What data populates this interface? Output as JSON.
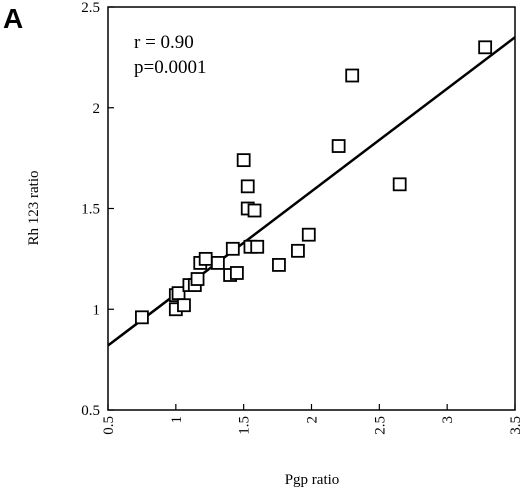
{
  "panel_label": "A",
  "chart_data": {
    "type": "scatter",
    "title": "",
    "xlabel": "Pgp ratio",
    "ylabel": "Rh 123 ratio",
    "xlim": [
      0.5,
      3.5
    ],
    "ylim": [
      0.5,
      2.5
    ],
    "x_ticks": [
      "0.5",
      "1",
      "1.5",
      "2",
      "2.5",
      "3",
      "3.5"
    ],
    "y_ticks": [
      "0.5",
      "1",
      "1.5",
      "2",
      "2.5"
    ],
    "grid": false,
    "marker": "open-square",
    "annotations": [
      "r = 0.90",
      "p=0.0001"
    ],
    "regression_line": {
      "x": [
        0.5,
        3.5
      ],
      "y": [
        0.82,
        2.35
      ]
    },
    "points": [
      {
        "x": 0.75,
        "y": 0.96
      },
      {
        "x": 1.0,
        "y": 1.0
      },
      {
        "x": 1.0,
        "y": 1.07
      },
      {
        "x": 1.02,
        "y": 1.08
      },
      {
        "x": 1.06,
        "y": 1.02
      },
      {
        "x": 1.1,
        "y": 1.12
      },
      {
        "x": 1.14,
        "y": 1.12
      },
      {
        "x": 1.16,
        "y": 1.15
      },
      {
        "x": 1.18,
        "y": 1.23
      },
      {
        "x": 1.22,
        "y": 1.25
      },
      {
        "x": 1.31,
        "y": 1.23
      },
      {
        "x": 1.4,
        "y": 1.17
      },
      {
        "x": 1.42,
        "y": 1.3
      },
      {
        "x": 1.45,
        "y": 1.18
      },
      {
        "x": 1.5,
        "y": 1.74
      },
      {
        "x": 1.53,
        "y": 1.61
      },
      {
        "x": 1.53,
        "y": 1.5
      },
      {
        "x": 1.55,
        "y": 1.31
      },
      {
        "x": 1.58,
        "y": 1.49
      },
      {
        "x": 1.6,
        "y": 1.31
      },
      {
        "x": 1.76,
        "y": 1.22
      },
      {
        "x": 1.9,
        "y": 1.29
      },
      {
        "x": 1.98,
        "y": 1.37
      },
      {
        "x": 2.2,
        "y": 1.81
      },
      {
        "x": 2.3,
        "y": 2.16
      },
      {
        "x": 2.65,
        "y": 1.62
      },
      {
        "x": 3.28,
        "y": 2.3
      }
    ]
  }
}
